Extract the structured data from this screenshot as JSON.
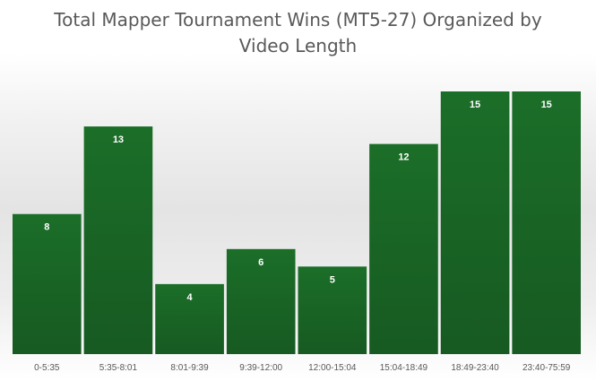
{
  "chart_data": {
    "type": "bar",
    "title": "Total Mapper Tournament Wins (MT5-27) Organized by\nVideo Length",
    "xlabel": "",
    "ylabel": "",
    "categories": [
      "0-5:35",
      "5:35-8:01",
      "8:01-9:39",
      "9:39-12:00",
      "12:00-15:04",
      "15:04-18:49",
      "18:49-23:40",
      "23:40-75:59"
    ],
    "values": [
      8,
      13,
      4,
      6,
      5,
      12,
      15,
      15
    ],
    "ylim": [
      0,
      15
    ],
    "grid": false,
    "legend": "none",
    "colors": {
      "bar_top": "#1b6e28",
      "bar_bottom": "#175a22",
      "label": "#ffffff",
      "tick": "#595959"
    }
  }
}
